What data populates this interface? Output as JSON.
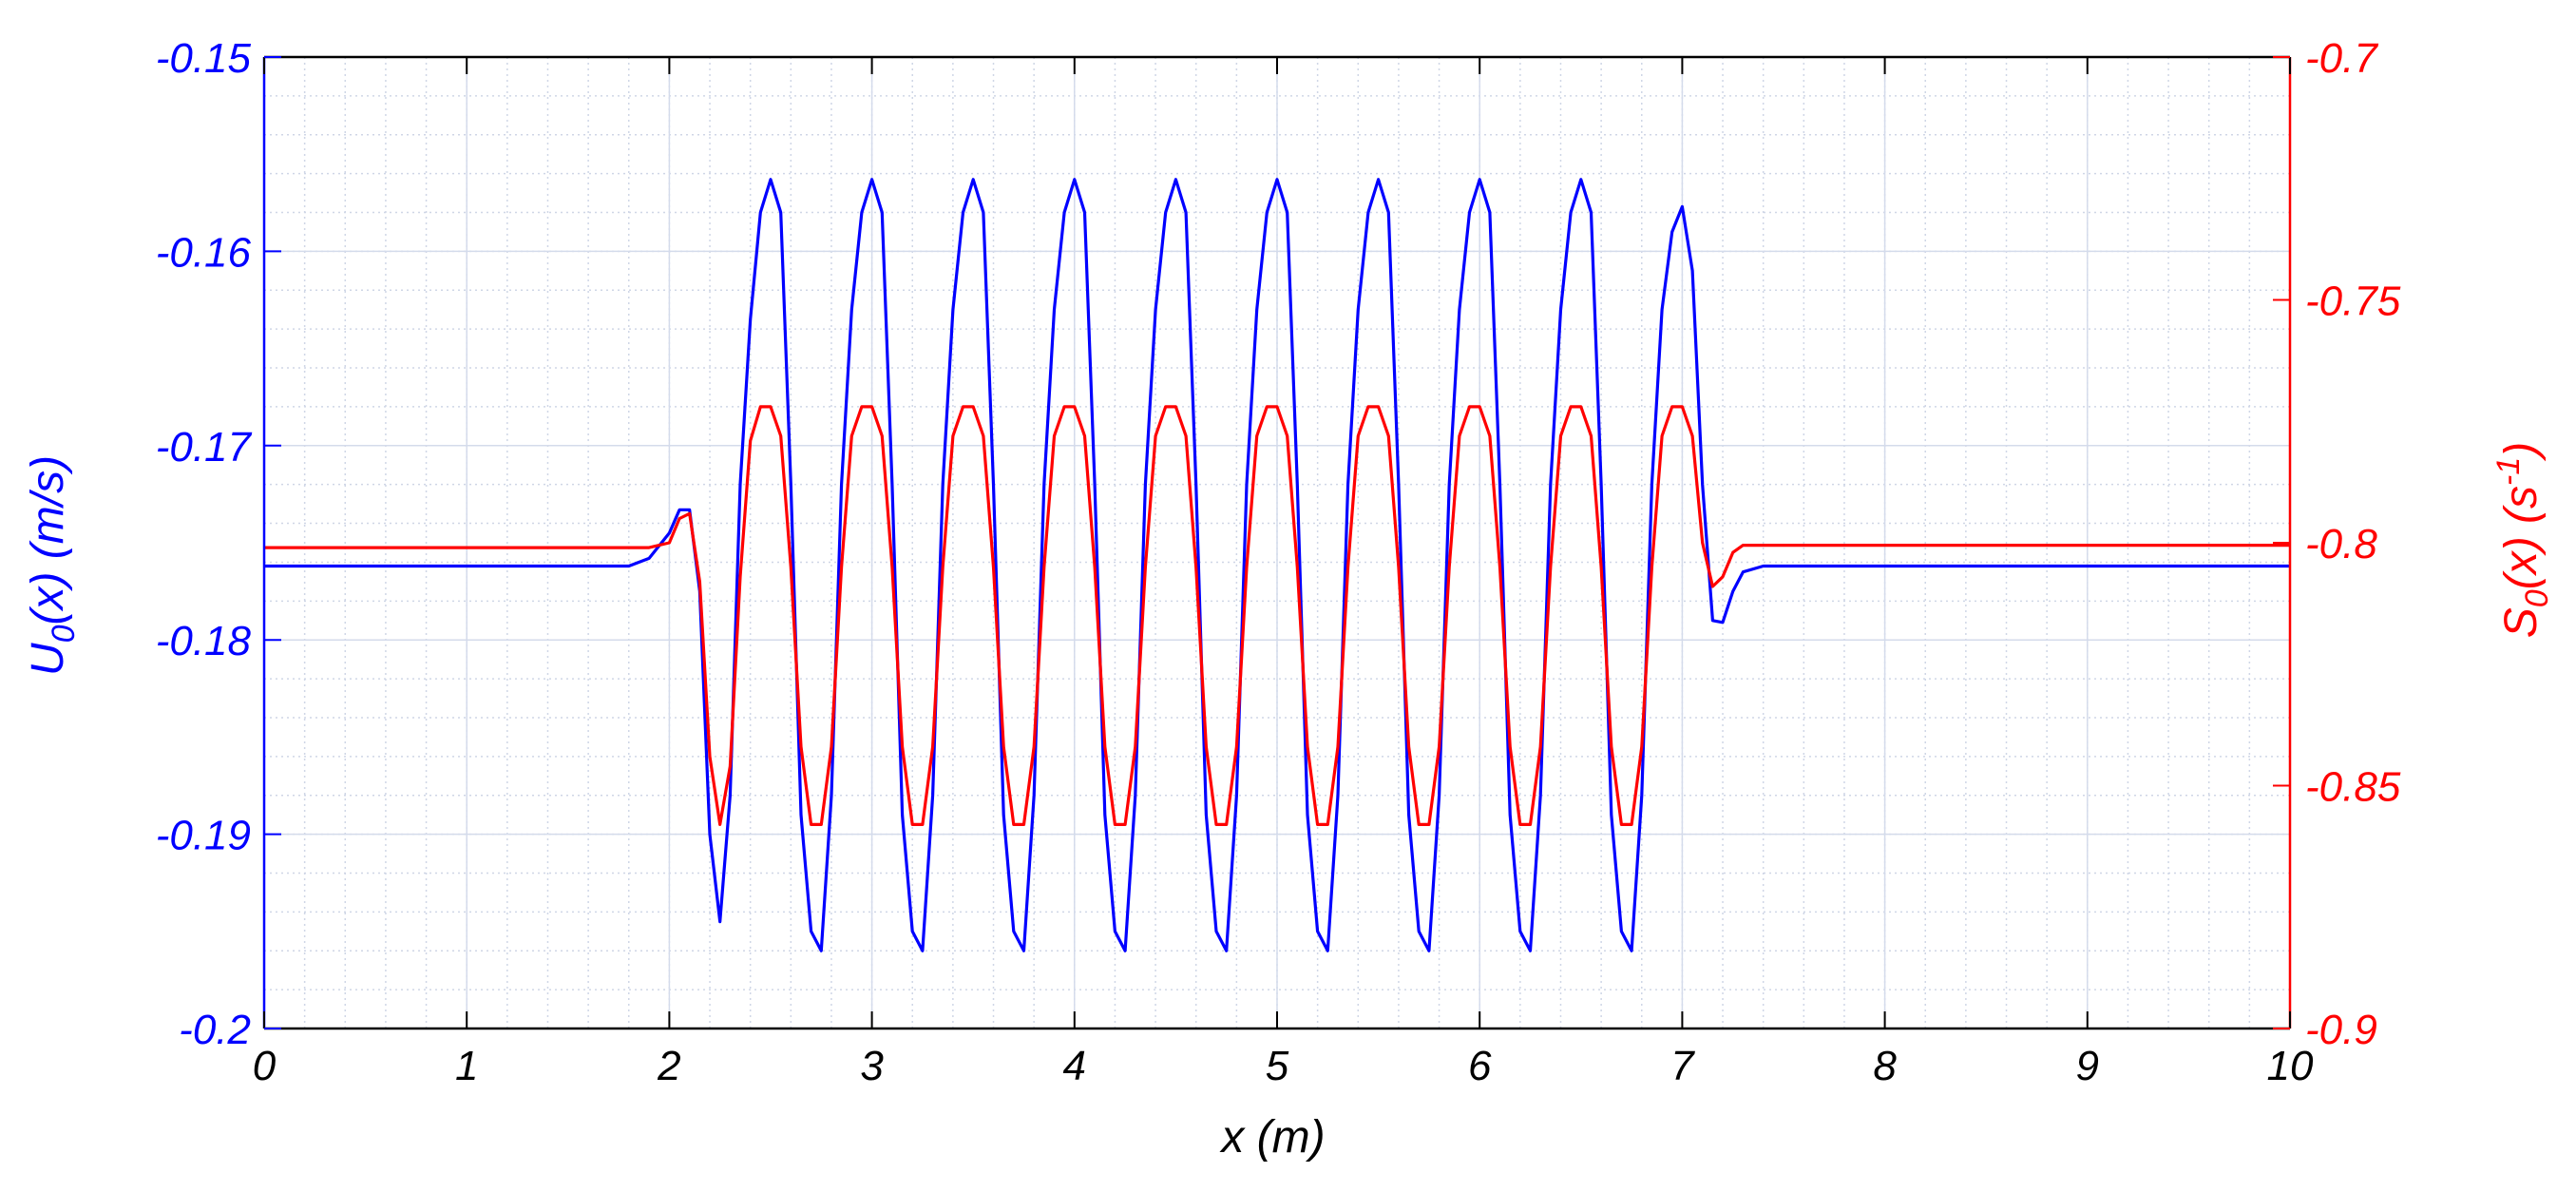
{
  "chart_data": {
    "type": "line",
    "title": "",
    "xlabel": "x (m)",
    "xlim": [
      0,
      10
    ],
    "x_ticks": [
      0,
      1,
      2,
      3,
      4,
      5,
      6,
      7,
      8,
      9,
      10
    ],
    "x_tick_labels": [
      "0",
      "1",
      "2",
      "3",
      "4",
      "5",
      "6",
      "7",
      "8",
      "9",
      "10"
    ],
    "grid": true,
    "minor_grid": true,
    "legend": "none",
    "y_left": {
      "label_main": "U",
      "label_sub": "0",
      "label_rest": "(x) (m/s)",
      "ylim": [
        -0.2,
        -0.15
      ],
      "ticks": [
        -0.2,
        -0.19,
        -0.18,
        -0.17,
        -0.16,
        -0.15
      ],
      "tick_labels": [
        "-0.2",
        "-0.19",
        "-0.18",
        "-0.17",
        "-0.16",
        "-0.15"
      ],
      "color": "#0000ff"
    },
    "y_right": {
      "label_main": "S",
      "label_sub": "0",
      "label_mid": "(x) (s",
      "label_sup": "-1",
      "label_end": ")",
      "ylim": [
        -0.9,
        -0.7
      ],
      "ticks": [
        -0.9,
        -0.85,
        -0.8,
        -0.75,
        -0.7
      ],
      "tick_labels": [
        "-0.9",
        "-0.85",
        "-0.8",
        "-0.75",
        "-0.7"
      ],
      "color": "#ff0000"
    },
    "series": [
      {
        "axis": "left",
        "color": "#0000ff",
        "x": [
          0,
          1.8,
          1.9,
          2.0,
          2.05,
          2.1,
          2.15,
          2.2,
          2.25,
          2.3,
          2.35,
          2.4,
          2.45,
          2.5,
          2.55,
          2.6,
          2.65,
          2.7,
          2.75,
          2.8,
          2.85,
          2.9,
          2.95,
          3.0,
          3.05,
          3.1,
          3.15,
          3.2,
          3.25,
          3.3,
          3.35,
          3.4,
          3.45,
          3.5,
          3.55,
          3.6,
          3.65,
          3.7,
          3.75,
          3.8,
          3.85,
          3.9,
          3.95,
          4.0,
          4.05,
          4.1,
          4.15,
          4.2,
          4.25,
          4.3,
          4.35,
          4.4,
          4.45,
          4.5,
          4.55,
          4.6,
          4.65,
          4.7,
          4.75,
          4.8,
          4.85,
          4.9,
          4.95,
          5.0,
          5.05,
          5.1,
          5.15,
          5.2,
          5.25,
          5.3,
          5.35,
          5.4,
          5.45,
          5.5,
          5.55,
          5.6,
          5.65,
          5.7,
          5.75,
          5.8,
          5.85,
          5.9,
          5.95,
          6.0,
          6.05,
          6.1,
          6.15,
          6.2,
          6.25,
          6.3,
          6.35,
          6.4,
          6.45,
          6.5,
          6.55,
          6.6,
          6.65,
          6.7,
          6.75,
          6.8,
          6.85,
          6.9,
          6.95,
          7.0,
          7.05,
          7.1,
          7.15,
          7.2,
          7.25,
          7.3,
          7.4,
          10
        ],
        "y": [
          -0.1762,
          -0.1762,
          -0.1758,
          -0.1745,
          -0.1733,
          -0.1733,
          -0.1775,
          -0.19,
          -0.1945,
          -0.188,
          -0.172,
          -0.1635,
          -0.158,
          -0.1563,
          -0.158,
          -0.172,
          -0.189,
          -0.195,
          -0.196,
          -0.188,
          -0.172,
          -0.163,
          -0.158,
          -0.1563,
          -0.158,
          -0.172,
          -0.189,
          -0.195,
          -0.196,
          -0.188,
          -0.172,
          -0.163,
          -0.158,
          -0.1563,
          -0.158,
          -0.172,
          -0.189,
          -0.195,
          -0.196,
          -0.188,
          -0.172,
          -0.163,
          -0.158,
          -0.1563,
          -0.158,
          -0.172,
          -0.189,
          -0.195,
          -0.196,
          -0.188,
          -0.172,
          -0.163,
          -0.158,
          -0.1563,
          -0.158,
          -0.172,
          -0.189,
          -0.195,
          -0.196,
          -0.188,
          -0.172,
          -0.163,
          -0.158,
          -0.1563,
          -0.158,
          -0.172,
          -0.189,
          -0.195,
          -0.196,
          -0.188,
          -0.172,
          -0.163,
          -0.158,
          -0.1563,
          -0.158,
          -0.172,
          -0.189,
          -0.195,
          -0.196,
          -0.188,
          -0.172,
          -0.163,
          -0.158,
          -0.1563,
          -0.158,
          -0.172,
          -0.189,
          -0.195,
          -0.196,
          -0.188,
          -0.172,
          -0.163,
          -0.158,
          -0.1563,
          -0.158,
          -0.172,
          -0.189,
          -0.195,
          -0.196,
          -0.188,
          -0.172,
          -0.163,
          -0.159,
          -0.1577,
          -0.161,
          -0.172,
          -0.179,
          -0.1791,
          -0.1775,
          -0.1765,
          -0.1762,
          -0.1762
        ]
      },
      {
        "axis": "right",
        "color": "#ff0000",
        "x": [
          0,
          1.8,
          1.9,
          2.0,
          2.05,
          2.1,
          2.15,
          2.2,
          2.25,
          2.3,
          2.35,
          2.4,
          2.45,
          2.5,
          2.55,
          2.6,
          2.65,
          2.7,
          2.75,
          2.8,
          2.85,
          2.9,
          2.95,
          3.0,
          3.05,
          3.1,
          3.15,
          3.2,
          3.25,
          3.3,
          3.35,
          3.4,
          3.45,
          3.5,
          3.55,
          3.6,
          3.65,
          3.7,
          3.75,
          3.8,
          3.85,
          3.9,
          3.95,
          4.0,
          4.05,
          4.1,
          4.15,
          4.2,
          4.25,
          4.3,
          4.35,
          4.4,
          4.45,
          4.5,
          4.55,
          4.6,
          4.65,
          4.7,
          4.75,
          4.8,
          4.85,
          4.9,
          4.95,
          5.0,
          5.05,
          5.1,
          5.15,
          5.2,
          5.25,
          5.3,
          5.35,
          5.4,
          5.45,
          5.5,
          5.55,
          5.6,
          5.65,
          5.7,
          5.75,
          5.8,
          5.85,
          5.9,
          5.95,
          6.0,
          6.05,
          6.1,
          6.15,
          6.2,
          6.25,
          6.3,
          6.35,
          6.4,
          6.45,
          6.5,
          6.55,
          6.6,
          6.65,
          6.7,
          6.75,
          6.8,
          6.85,
          6.9,
          6.95,
          7.0,
          7.05,
          7.1,
          7.15,
          7.2,
          7.25,
          7.3,
          7.4,
          10
        ],
        "y": [
          -0.801,
          -0.801,
          -0.801,
          -0.8,
          -0.795,
          -0.794,
          -0.808,
          -0.844,
          -0.858,
          -0.846,
          -0.807,
          -0.779,
          -0.772,
          -0.772,
          -0.778,
          -0.805,
          -0.842,
          -0.858,
          -0.858,
          -0.842,
          -0.805,
          -0.778,
          -0.772,
          -0.772,
          -0.778,
          -0.805,
          -0.842,
          -0.858,
          -0.858,
          -0.842,
          -0.805,
          -0.778,
          -0.772,
          -0.772,
          -0.778,
          -0.805,
          -0.842,
          -0.858,
          -0.858,
          -0.842,
          -0.805,
          -0.778,
          -0.772,
          -0.772,
          -0.778,
          -0.805,
          -0.842,
          -0.858,
          -0.858,
          -0.842,
          -0.805,
          -0.778,
          -0.772,
          -0.772,
          -0.778,
          -0.805,
          -0.842,
          -0.858,
          -0.858,
          -0.842,
          -0.805,
          -0.778,
          -0.772,
          -0.772,
          -0.778,
          -0.805,
          -0.842,
          -0.858,
          -0.858,
          -0.842,
          -0.805,
          -0.778,
          -0.772,
          -0.772,
          -0.778,
          -0.805,
          -0.842,
          -0.858,
          -0.858,
          -0.842,
          -0.805,
          -0.778,
          -0.772,
          -0.772,
          -0.778,
          -0.805,
          -0.842,
          -0.858,
          -0.858,
          -0.842,
          -0.805,
          -0.778,
          -0.772,
          -0.772,
          -0.778,
          -0.805,
          -0.842,
          -0.858,
          -0.858,
          -0.842,
          -0.805,
          -0.778,
          -0.772,
          -0.772,
          -0.778,
          -0.8,
          -0.809,
          -0.807,
          -0.802,
          -0.8005,
          -0.8005,
          -0.8005
        ]
      }
    ]
  }
}
